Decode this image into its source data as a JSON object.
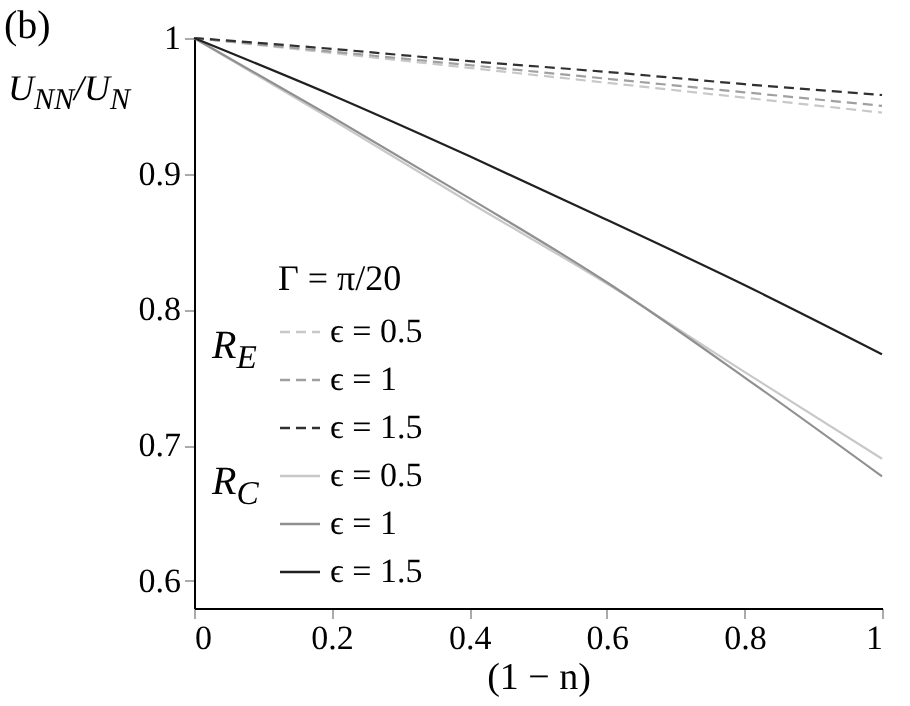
{
  "chart_data": {
    "type": "line",
    "xlabel": "(1 − n)",
    "ylabel": "U$_{NN}$/U$_{N}$",
    "legend_title": "Γ = π/20",
    "annotations": [
      "(b)",
      "R$_{E}$",
      "R$_{C}$"
    ],
    "x": [
      0,
      0.2,
      0.4,
      0.6,
      0.8,
      1
    ],
    "series": [
      {
        "name": "ϵ = 0.5",
        "color": "#c8c8c8",
        "line_style": "dashed",
        "values": [
          1,
          0.989,
          0.978,
          0.967,
          0.956,
          0.945
        ]
      },
      {
        "name": "ϵ = 1",
        "color": "#a0a0a0",
        "line_style": "dashed",
        "values": [
          1,
          0.99,
          0.98,
          0.97,
          0.96,
          0.95
        ]
      },
      {
        "name": "ϵ = 1.5",
        "color": "#303030",
        "line_style": "dashed",
        "values": [
          1,
          0.992,
          0.983,
          0.975,
          0.966,
          0.958
        ]
      },
      {
        "name": "ϵ = 0.5",
        "color": "#c8c8c8",
        "line_style": "solid",
        "values": [
          1,
          0.94,
          0.879,
          0.819,
          0.754,
          0.69
        ]
      },
      {
        "name": "ϵ = 1",
        "color": "#909090",
        "line_style": "solid",
        "values": [
          1,
          0.942,
          0.882,
          0.82,
          0.75,
          0.677
        ]
      },
      {
        "name": "ϵ = 1.5",
        "color": "#202020",
        "line_style": "solid",
        "values": [
          1,
          0.958,
          0.913,
          0.866,
          0.818,
          0.767
        ]
      }
    ],
    "xlim": [
      0,
      1
    ],
    "xticks": [
      0,
      0.2,
      0.4,
      0.6,
      0.8,
      1
    ],
    "ylim": [
      0.58,
      1
    ],
    "yticks": [
      0.6,
      0.7,
      0.8,
      0.9,
      1
    ],
    "legend": "bottom left",
    "marker": "none",
    "grid": false
  }
}
